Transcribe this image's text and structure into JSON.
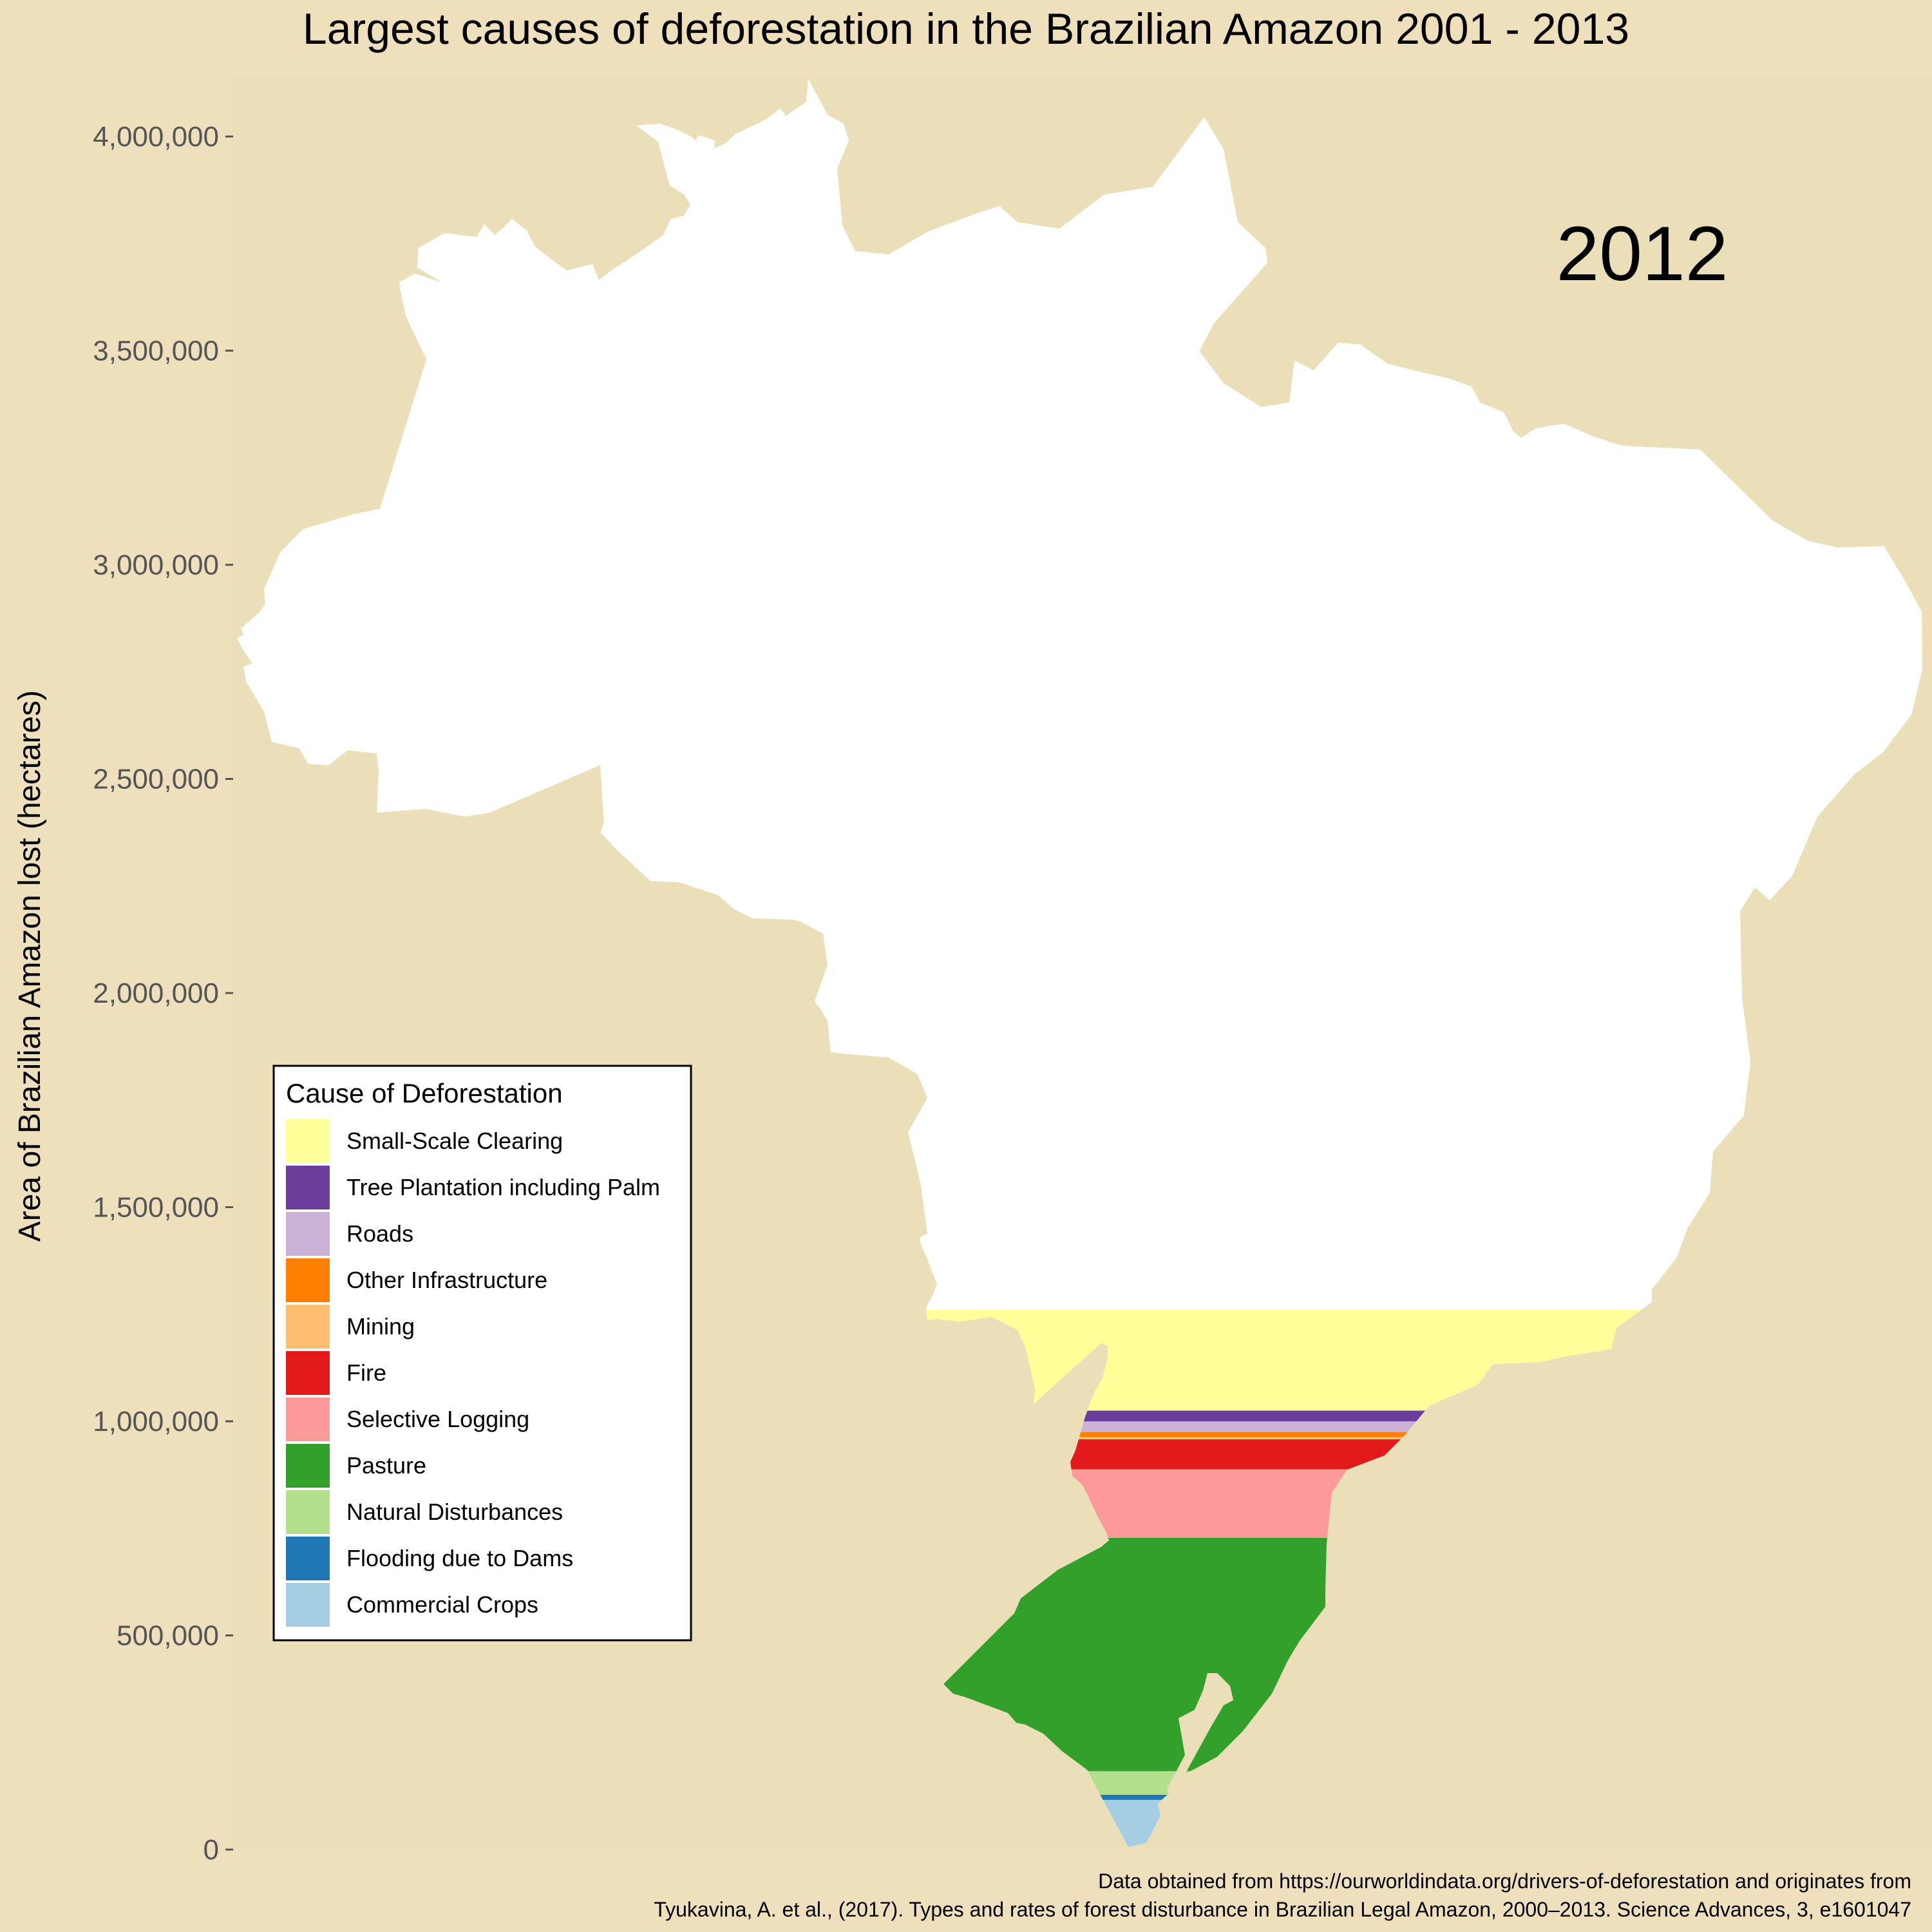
{
  "chart_data": {
    "type": "area",
    "title": "Largest causes of deforestation in the Brazilian Amazon 2001 - 2013",
    "year": "2012",
    "ylabel": "Area of Brazilian Amazon lost (hectares)",
    "ylim": [
      0,
      4000000
    ],
    "yticks": [
      {
        "value": 0,
        "label": "0"
      },
      {
        "value": 500000,
        "label": "500,000"
      },
      {
        "value": 1000000,
        "label": "1,000,000"
      },
      {
        "value": 1500000,
        "label": "1,500,000"
      },
      {
        "value": 2000000,
        "label": "2,000,000"
      },
      {
        "value": 2500000,
        "label": "2,500,000"
      },
      {
        "value": 3000000,
        "label": "3,000,000"
      },
      {
        "value": 3500000,
        "label": "3,500,000"
      },
      {
        "value": 4000000,
        "label": "4,000,000"
      }
    ],
    "grid": false,
    "legend_title": "Cause of Deforestation",
    "legend_position": "left",
    "series": [
      {
        "name": "Small-Scale Clearing",
        "value": 235000,
        "color": "#ffff99"
      },
      {
        "name": "Tree Plantation including Palm",
        "value": 25000,
        "color": "#6a3d9a"
      },
      {
        "name": "Roads",
        "value": 25000,
        "color": "#cab2d6"
      },
      {
        "name": "Other Infrastructure",
        "value": 12000,
        "color": "#ff7f00"
      },
      {
        "name": "Mining",
        "value": 5000,
        "color": "#fdbf6f"
      },
      {
        "name": "Fire",
        "value": 70000,
        "color": "#e31a1c"
      },
      {
        "name": "Selective Logging",
        "value": 160000,
        "color": "#fb9a99"
      },
      {
        "name": "Pasture",
        "value": 545000,
        "color": "#33a02c"
      },
      {
        "name": "Natural Disturbances",
        "value": 55000,
        "color": "#b2df8a"
      },
      {
        "name": "Flooding due to Dams",
        "value": 12000,
        "color": "#1f78b4"
      },
      {
        "name": "Commercial Crops",
        "value": 116000,
        "color": "#a6cee3"
      }
    ],
    "source": [
      "Data obtained from https://ourworldindata.org/drivers-of-deforestation and originates from",
      "Tyukavina, A. et al., (2017). Types and rates of forest disturbance in Brazilian Legal Amazon, 2000–2013. Science Advances, 3, e1601047"
    ],
    "colors": {
      "background": "#eee0bc",
      "panel": "#ebdfb9",
      "remaining": "#ffffff",
      "tick": "#555555"
    }
  }
}
